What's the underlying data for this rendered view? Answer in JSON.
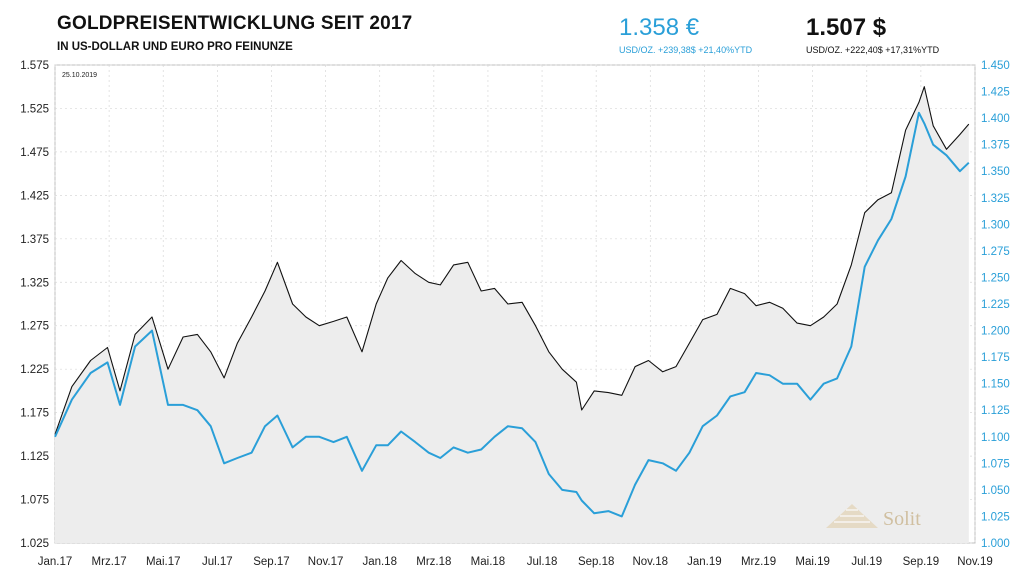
{
  "header": {
    "title": "GOLDPREISENTWICKLUNG SEIT 2017",
    "subtitle": "IN US-DOLLAR UND EURO PRO FEINUNZE"
  },
  "kpi_eur": {
    "value": "1.358 €",
    "detail": "USD/OZ.  +239,38$  +21,40%YTD"
  },
  "kpi_usd": {
    "value": "1.507 $",
    "detail": "USD/OZ.  +222,40$  +17,31%YTD"
  },
  "date_stamp": "25.10.2019",
  "logo": {
    "name": "Solit",
    "icon": "pyramid-icon"
  },
  "colors": {
    "usd_line": "#111111",
    "eur_line": "#2a9fd8",
    "area_fill": "#ededed",
    "grid": "#d8d8d8"
  },
  "chart_data": {
    "type": "line",
    "x_tick_labels": [
      "Jan.17",
      "Mrz.17",
      "Mai.17",
      "Jul.17",
      "Sep.17",
      "Nov.17",
      "Jan.18",
      "Mrz.18",
      "Mai.18",
      "Jul.18",
      "Sep.18",
      "Nov.18",
      "Jan.19",
      "Mrz.19",
      "Mai.19",
      "Jul.19",
      "Sep.19",
      "Nov.19"
    ],
    "y_left_ticks": [
      "1.025",
      "1.075",
      "1.125",
      "1.175",
      "1.225",
      "1.275",
      "1.325",
      "1.375",
      "1.425",
      "1.475",
      "1.525",
      "1.575"
    ],
    "y_right_ticks": [
      "1.000",
      "1.025",
      "1.050",
      "1.075",
      "1.100",
      "1.125",
      "1.150",
      "1.175",
      "1.200",
      "1.225",
      "1.250",
      "1.275",
      "1.300",
      "1.325",
      "1.350",
      "1.375",
      "1.400",
      "1.425",
      "1.450"
    ],
    "ylim_left": [
      1025,
      1575
    ],
    "ylim_right": [
      1000,
      1450
    ],
    "xlim": [
      "2017-01-01",
      "2019-11-01"
    ],
    "grid": true,
    "series": [
      {
        "axis": "left",
        "color": "#111111",
        "fill": true,
        "x": [
          "2017-01-01",
          "2017-01-20",
          "2017-02-10",
          "2017-03-01",
          "2017-03-15",
          "2017-04-01",
          "2017-04-20",
          "2017-05-08",
          "2017-05-25",
          "2017-06-10",
          "2017-06-25",
          "2017-07-10",
          "2017-07-25",
          "2017-08-10",
          "2017-08-25",
          "2017-09-08",
          "2017-09-25",
          "2017-10-10",
          "2017-10-25",
          "2017-11-10",
          "2017-11-25",
          "2017-12-12",
          "2017-12-28",
          "2018-01-10",
          "2018-01-25",
          "2018-02-10",
          "2018-02-25",
          "2018-03-10",
          "2018-03-25",
          "2018-04-10",
          "2018-04-25",
          "2018-05-10",
          "2018-05-25",
          "2018-06-10",
          "2018-06-25",
          "2018-07-10",
          "2018-07-25",
          "2018-08-10",
          "2018-08-16",
          "2018-08-30",
          "2018-09-15",
          "2018-09-30",
          "2018-10-15",
          "2018-10-30",
          "2018-11-15",
          "2018-11-30",
          "2018-12-15",
          "2018-12-30",
          "2019-01-15",
          "2019-01-30",
          "2019-02-15",
          "2019-02-28",
          "2019-03-15",
          "2019-03-30",
          "2019-04-15",
          "2019-04-30",
          "2019-05-15",
          "2019-05-30",
          "2019-06-15",
          "2019-06-30",
          "2019-07-15",
          "2019-07-30",
          "2019-08-15",
          "2019-08-30",
          "2019-09-05",
          "2019-09-15",
          "2019-09-30",
          "2019-10-15",
          "2019-10-25"
        ],
        "values": [
          1150,
          1205,
          1235,
          1250,
          1200,
          1265,
          1285,
          1225,
          1262,
          1265,
          1245,
          1215,
          1255,
          1285,
          1315,
          1348,
          1300,
          1285,
          1275,
          1280,
          1285,
          1245,
          1300,
          1330,
          1350,
          1335,
          1325,
          1322,
          1345,
          1348,
          1315,
          1318,
          1300,
          1302,
          1275,
          1245,
          1225,
          1210,
          1178,
          1200,
          1198,
          1195,
          1228,
          1235,
          1222,
          1228,
          1255,
          1282,
          1288,
          1318,
          1312,
          1298,
          1302,
          1295,
          1278,
          1275,
          1285,
          1300,
          1345,
          1405,
          1420,
          1428,
          1500,
          1532,
          1550,
          1505,
          1478,
          1495,
          1507
        ]
      },
      {
        "axis": "right",
        "color": "#2a9fd8",
        "fill": false,
        "x": [
          "2017-01-01",
          "2017-01-20",
          "2017-02-10",
          "2017-03-01",
          "2017-03-15",
          "2017-04-01",
          "2017-04-20",
          "2017-05-08",
          "2017-05-25",
          "2017-06-10",
          "2017-06-25",
          "2017-07-10",
          "2017-07-25",
          "2017-08-10",
          "2017-08-25",
          "2017-09-08",
          "2017-09-25",
          "2017-10-10",
          "2017-10-25",
          "2017-11-10",
          "2017-11-25",
          "2017-12-12",
          "2017-12-28",
          "2018-01-10",
          "2018-01-25",
          "2018-02-10",
          "2018-02-25",
          "2018-03-10",
          "2018-03-25",
          "2018-04-10",
          "2018-04-25",
          "2018-05-10",
          "2018-05-25",
          "2018-06-10",
          "2018-06-25",
          "2018-07-10",
          "2018-07-25",
          "2018-08-10",
          "2018-08-16",
          "2018-08-30",
          "2018-09-15",
          "2018-09-30",
          "2018-10-15",
          "2018-10-30",
          "2018-11-15",
          "2018-11-30",
          "2018-12-15",
          "2018-12-30",
          "2019-01-15",
          "2019-01-30",
          "2019-02-15",
          "2019-02-28",
          "2019-03-15",
          "2019-03-30",
          "2019-04-15",
          "2019-04-30",
          "2019-05-15",
          "2019-05-30",
          "2019-06-15",
          "2019-06-30",
          "2019-07-15",
          "2019-07-30",
          "2019-08-15",
          "2019-08-30",
          "2019-09-05",
          "2019-09-15",
          "2019-09-30",
          "2019-10-15",
          "2019-10-25"
        ],
        "values": [
          1100,
          1135,
          1160,
          1170,
          1130,
          1185,
          1200,
          1130,
          1130,
          1125,
          1110,
          1075,
          1080,
          1085,
          1110,
          1120,
          1090,
          1100,
          1100,
          1095,
          1100,
          1068,
          1092,
          1092,
          1105,
          1095,
          1085,
          1080,
          1090,
          1085,
          1088,
          1100,
          1110,
          1108,
          1095,
          1065,
          1050,
          1048,
          1040,
          1028,
          1030,
          1025,
          1055,
          1078,
          1075,
          1068,
          1085,
          1110,
          1120,
          1138,
          1142,
          1160,
          1158,
          1150,
          1150,
          1135,
          1150,
          1155,
          1185,
          1260,
          1285,
          1305,
          1345,
          1405,
          1395,
          1375,
          1365,
          1350,
          1358
        ]
      }
    ]
  }
}
